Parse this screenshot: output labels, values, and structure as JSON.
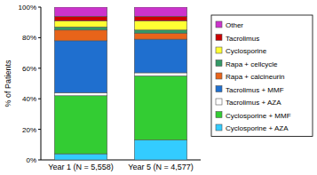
{
  "chart_data": {
    "type": "bar",
    "stacked": true,
    "legend": "right",
    "y_label": "% of Patients",
    "categories": [
      "Year 1 (N = 5,558)",
      "Year 5 (N = 4,577)"
    ],
    "ylim": [
      0,
      100
    ],
    "yticks": [
      {
        "value": 0,
        "label": "0%"
      },
      {
        "value": 20,
        "label": "20%"
      },
      {
        "value": 40,
        "label": "40%"
      },
      {
        "value": 60,
        "label": "60%"
      },
      {
        "value": 80,
        "label": "80%"
      },
      {
        "value": 100,
        "label": "100%"
      }
    ],
    "series": [
      {
        "name": "Cyclosporine + AZA",
        "color": "#33ccff",
        "values": [
          4,
          13
        ]
      },
      {
        "name": "Cyclosporine + MMF",
        "color": "#33cc33",
        "values": [
          38,
          42
        ]
      },
      {
        "name": "Tacrolimus + AZA",
        "color": "#ffffff",
        "values": [
          2,
          2
        ]
      },
      {
        "name": "Tacrolimus + MMF",
        "color": "#1f6fcf",
        "values": [
          34,
          22
        ]
      },
      {
        "name": "Rapa + calcineurin",
        "color": "#e8641a",
        "values": [
          7,
          4
        ]
      },
      {
        "name": "Rapa + cellcycle",
        "color": "#339966",
        "values": [
          2,
          2
        ]
      },
      {
        "name": "Cyclosporine",
        "color": "#ffff33",
        "values": [
          4,
          6
        ]
      },
      {
        "name": "Tacrolimus",
        "color": "#cc0000",
        "values": [
          3,
          3
        ]
      },
      {
        "name": "Other",
        "color": "#cc33cc",
        "values": [
          6,
          6
        ]
      }
    ]
  }
}
